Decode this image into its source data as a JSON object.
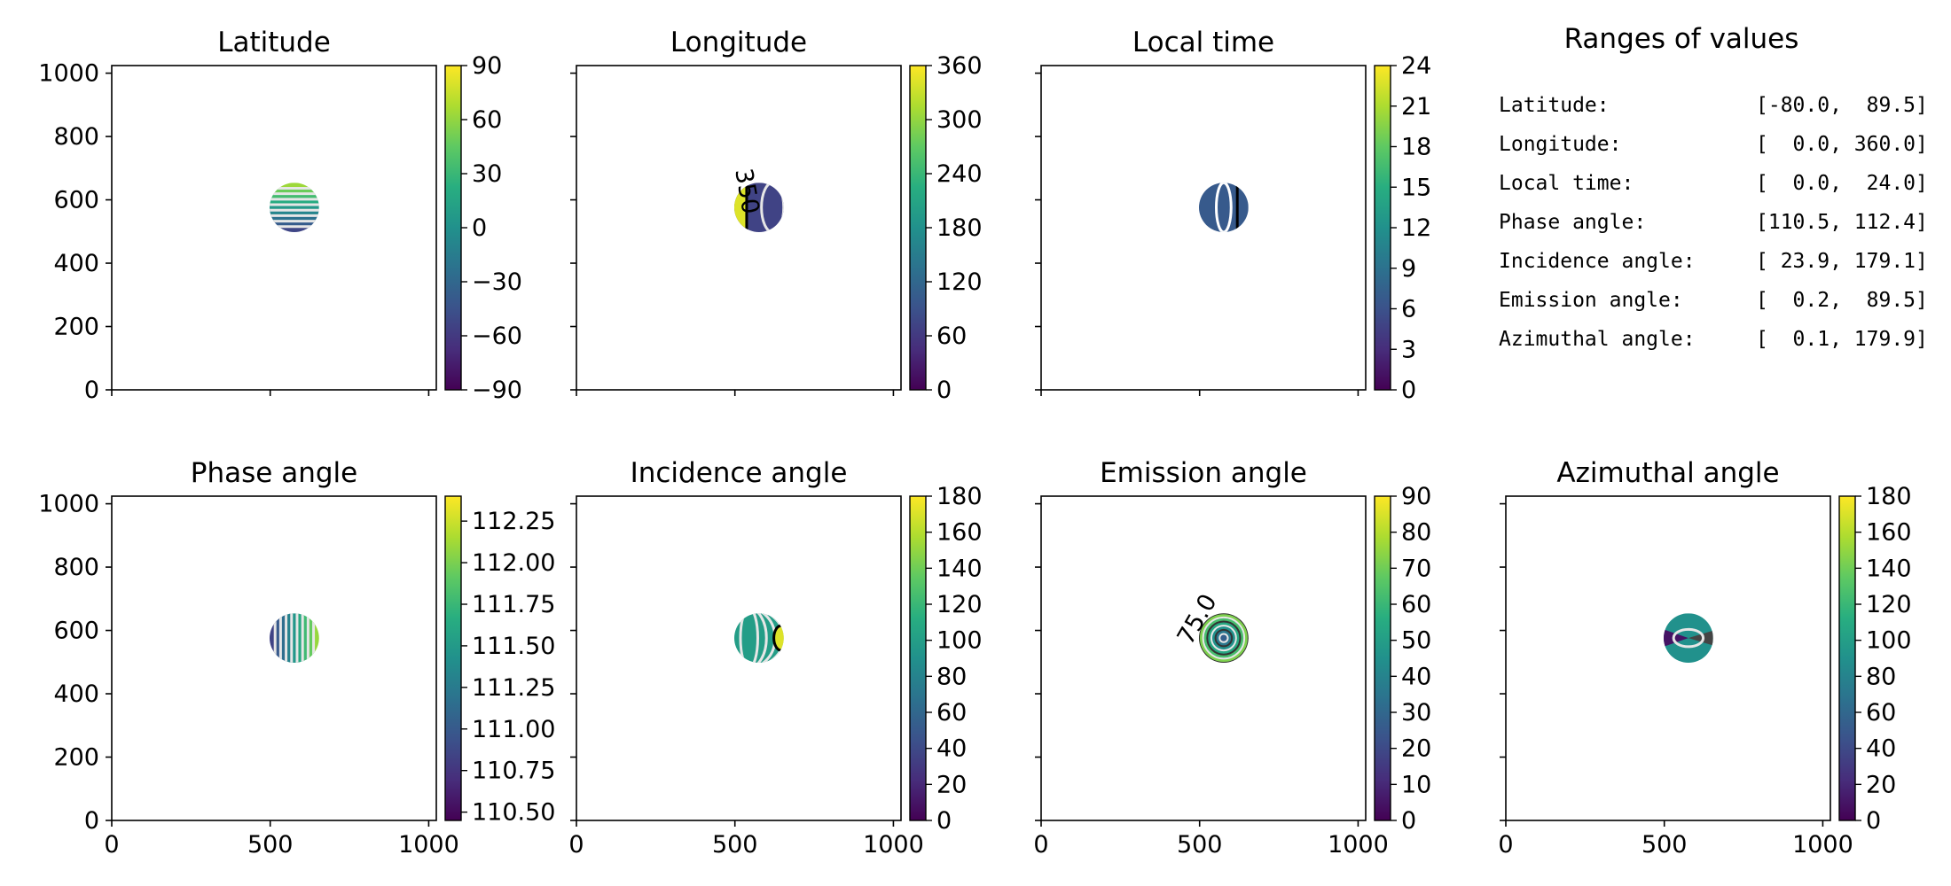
{
  "colors": {
    "colormap": "viridis",
    "axes": "#000000",
    "background": "#ffffff",
    "contour_light": "#d9d9d9",
    "contour_dark": "#000000"
  },
  "ranges_panel": {
    "title": "Ranges of values",
    "rows": [
      {
        "name": "Latitude:",
        "value": "[-80.0,  89.5]"
      },
      {
        "name": "Longitude:",
        "value": "[  0.0, 360.0]"
      },
      {
        "name": "Local time:",
        "value": "[  0.0,  24.0]"
      },
      {
        "name": "Phase angle:",
        "value": "[110.5, 112.4]"
      },
      {
        "name": "Incidence angle:",
        "value": "[ 23.9, 179.1]"
      },
      {
        "name": "Emission angle:",
        "value": "[  0.2,  89.5]"
      },
      {
        "name": "Azimuthal angle:",
        "value": "[  0.1, 179.9]"
      }
    ]
  },
  "chart_data": [
    {
      "type": "heatmap",
      "title": "Latitude",
      "xlim": [
        0,
        1024
      ],
      "ylim": [
        0,
        1024
      ],
      "xticks": [
        0,
        500,
        1000
      ],
      "yticks": [
        0,
        200,
        400,
        600,
        800,
        1000
      ],
      "show_xticklabels": false,
      "show_yticklabels": true,
      "disk": {
        "center": [
          576,
          576
        ],
        "radius": 78
      },
      "pattern": "horizontal-bands",
      "colorbar": {
        "min": -90,
        "max": 90,
        "ticks": [
          -90,
          -60,
          -30,
          0,
          30,
          60,
          90
        ],
        "labels": [
          "−90",
          "−60",
          "−30",
          "0",
          "30",
          "60",
          "90"
        ]
      },
      "contour_labels": []
    },
    {
      "type": "heatmap",
      "title": "Longitude",
      "xlim": [
        0,
        1024
      ],
      "ylim": [
        0,
        1024
      ],
      "xticks": [
        0,
        500,
        1000
      ],
      "yticks": [
        0,
        200,
        400,
        600,
        800,
        1000
      ],
      "show_xticklabels": false,
      "show_yticklabels": false,
      "disk": {
        "center": [
          576,
          576
        ],
        "radius": 78
      },
      "pattern": "longitude",
      "colorbar": {
        "min": 0,
        "max": 360,
        "ticks": [
          0,
          60,
          120,
          180,
          240,
          300,
          360
        ],
        "labels": [
          "0",
          "60",
          "120",
          "180",
          "240",
          "300",
          "360"
        ]
      },
      "contour_labels": [
        "350"
      ]
    },
    {
      "type": "heatmap",
      "title": "Local time",
      "xlim": [
        0,
        1024
      ],
      "ylim": [
        0,
        1024
      ],
      "xticks": [
        0,
        500,
        1000
      ],
      "yticks": [
        0,
        200,
        400,
        600,
        800,
        1000
      ],
      "show_xticklabels": false,
      "show_yticklabels": false,
      "disk": {
        "center": [
          576,
          576
        ],
        "radius": 78
      },
      "pattern": "local-time",
      "colorbar": {
        "min": 0,
        "max": 24,
        "ticks": [
          0,
          3,
          6,
          9,
          12,
          15,
          18,
          21,
          24
        ],
        "labels": [
          "0",
          "3",
          "6",
          "9",
          "12",
          "15",
          "18",
          "21",
          "24"
        ]
      },
      "contour_labels": []
    },
    {
      "type": "text",
      "title": "Ranges of values"
    },
    {
      "type": "heatmap",
      "title": "Phase angle",
      "xlim": [
        0,
        1024
      ],
      "ylim": [
        0,
        1024
      ],
      "xticks": [
        0,
        500,
        1000
      ],
      "yticks": [
        0,
        200,
        400,
        600,
        800,
        1000
      ],
      "show_xticklabels": true,
      "show_yticklabels": true,
      "xticklabels": [
        "0",
        "500",
        "1000"
      ],
      "disk": {
        "center": [
          576,
          576
        ],
        "radius": 78
      },
      "pattern": "vertical-bands",
      "colorbar": {
        "min": 110.45,
        "max": 112.4,
        "ticks": [
          110.5,
          110.75,
          111.0,
          111.25,
          111.5,
          111.75,
          112.0,
          112.25
        ],
        "labels": [
          "110.50",
          "110.75",
          "111.00",
          "111.25",
          "111.50",
          "111.75",
          "112.00",
          "112.25"
        ]
      },
      "contour_labels": []
    },
    {
      "type": "heatmap",
      "title": "Incidence angle",
      "xlim": [
        0,
        1024
      ],
      "ylim": [
        0,
        1024
      ],
      "xticks": [
        0,
        500,
        1000
      ],
      "yticks": [
        0,
        200,
        400,
        600,
        800,
        1000
      ],
      "show_xticklabels": true,
      "show_yticklabels": false,
      "xticklabels": [
        "0",
        "500",
        "1000"
      ],
      "disk": {
        "center": [
          576,
          576
        ],
        "radius": 78
      },
      "pattern": "incidence",
      "colorbar": {
        "min": 0,
        "max": 180,
        "ticks": [
          0,
          20,
          40,
          60,
          80,
          100,
          120,
          140,
          160,
          180
        ],
        "labels": [
          "0",
          "20",
          "40",
          "60",
          "80",
          "100",
          "120",
          "140",
          "160",
          "180"
        ]
      },
      "contour_labels": []
    },
    {
      "type": "heatmap",
      "title": "Emission angle",
      "xlim": [
        0,
        1024
      ],
      "ylim": [
        0,
        1024
      ],
      "xticks": [
        0,
        500,
        1000
      ],
      "yticks": [
        0,
        200,
        400,
        600,
        800,
        1000
      ],
      "show_xticklabels": true,
      "show_yticklabels": false,
      "xticklabels": [
        "0",
        "500",
        "1000"
      ],
      "disk": {
        "center": [
          576,
          576
        ],
        "radius": 78
      },
      "pattern": "emission",
      "colorbar": {
        "min": 0,
        "max": 90,
        "ticks": [
          0,
          10,
          20,
          30,
          40,
          50,
          60,
          70,
          80,
          90
        ],
        "labels": [
          "0",
          "10",
          "20",
          "30",
          "40",
          "50",
          "60",
          "70",
          "80",
          "90"
        ]
      },
      "contour_labels": [
        "75.0"
      ]
    },
    {
      "type": "heatmap",
      "title": "Azimuthal angle",
      "xlim": [
        0,
        1024
      ],
      "ylim": [
        0,
        1024
      ],
      "xticks": [
        0,
        500,
        1000
      ],
      "yticks": [
        0,
        200,
        400,
        600,
        800,
        1000
      ],
      "show_xticklabels": true,
      "show_yticklabels": false,
      "xticklabels": [
        "0",
        "500",
        "1000"
      ],
      "disk": {
        "center": [
          576,
          576
        ],
        "radius": 78
      },
      "pattern": "azimuthal",
      "colorbar": {
        "min": 0,
        "max": 180,
        "ticks": [
          0,
          20,
          40,
          60,
          80,
          100,
          120,
          140,
          160,
          180
        ],
        "labels": [
          "0",
          "20",
          "40",
          "60",
          "80",
          "100",
          "120",
          "140",
          "160",
          "180"
        ]
      },
      "contour_labels": []
    }
  ]
}
